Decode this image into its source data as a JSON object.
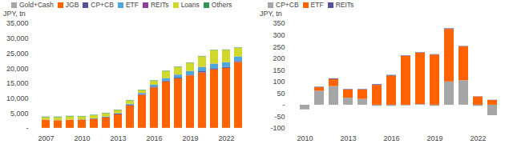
{
  "chart_data": [
    {
      "type": "bar",
      "stacked": true,
      "legend": "top",
      "ylabel": "JPY, tn",
      "categories": [
        "2007",
        null,
        null,
        "2010",
        null,
        null,
        "2013",
        null,
        null,
        "2016",
        null,
        null,
        "2019",
        null,
        null,
        "2022",
        null
      ],
      "series": [
        {
          "name": "Gold+Cash",
          "color": "#a6a6a6",
          "values": [
            60,
            60,
            60,
            60,
            60,
            60,
            60,
            60,
            60,
            60,
            60,
            60,
            60,
            60,
            60,
            60,
            60
          ]
        },
        {
          "name": "JGB",
          "color": "#ff6200",
          "values": [
            2700,
            2500,
            2600,
            2700,
            3000,
            3500,
            4500,
            7500,
            11000,
            13500,
            15500,
            16500,
            17500,
            18500,
            19500,
            20000,
            22000
          ]
        },
        {
          "name": "CP+CB",
          "color": "#525199",
          "values": [
            50,
            50,
            100,
            100,
            150,
            200,
            250,
            250,
            250,
            250,
            250,
            250,
            250,
            400,
            400,
            350,
            300
          ]
        },
        {
          "name": "ETF",
          "color": "#4ea6dc",
          "values": [
            0,
            0,
            0,
            10,
            40,
            80,
            150,
            250,
            400,
            600,
            800,
            1000,
            1200,
            1400,
            1500,
            1500,
            1500
          ]
        },
        {
          "name": "REITs",
          "color": "#8e3f9b",
          "values": [
            0,
            0,
            0,
            2,
            5,
            10,
            15,
            20,
            30,
            40,
            50,
            55,
            60,
            65,
            65,
            65,
            65
          ]
        },
        {
          "name": "Loans",
          "color": "#d0d92b",
          "values": [
            800,
            1000,
            1100,
            1000,
            1000,
            1100,
            1000,
            1100,
            900,
            1300,
            2300,
            2500,
            2600,
            3500,
            4400,
            4100,
            2800
          ]
        },
        {
          "name": "Others",
          "color": "#349651",
          "values": [
            200,
            200,
            200,
            150,
            150,
            150,
            150,
            150,
            150,
            150,
            150,
            150,
            150,
            150,
            150,
            150,
            150
          ]
        }
      ],
      "ylim": [
        0,
        35000
      ],
      "yticks": [
        {
          "value": 0,
          "label": "-"
        },
        {
          "value": 5000,
          "label": "5,000"
        },
        {
          "value": 10000,
          "label": "10,000"
        },
        {
          "value": 15000,
          "label": "15,000"
        },
        {
          "value": 20000,
          "label": "20,000"
        },
        {
          "value": 25000,
          "label": "25,000"
        },
        {
          "value": 30000,
          "label": "30,000"
        },
        {
          "value": 35000,
          "label": "35,000"
        }
      ]
    },
    {
      "type": "bar",
      "stacked": true,
      "legend": "top",
      "ylabel": "JPY, tn",
      "categories": [
        "2010",
        null,
        null,
        "2013",
        null,
        null,
        "2016",
        null,
        null,
        "2019",
        null,
        null,
        "2022",
        null
      ],
      "series": [
        {
          "name": "CP+CB",
          "color": "#a6a6a6",
          "values": [
            -20,
            60,
            80,
            30,
            25,
            -5,
            -5,
            -3,
            3,
            -5,
            100,
            105,
            -5,
            -45
          ]
        },
        {
          "name": "ETF",
          "color": "#ff6200",
          "values": [
            0,
            15,
            30,
            35,
            40,
            85,
            125,
            210,
            220,
            215,
            225,
            145,
            35,
            20
          ]
        },
        {
          "name": "REITs",
          "color": "#525199",
          "values": [
            0,
            2,
            3,
            2,
            2,
            3,
            3,
            2,
            2,
            2,
            3,
            2,
            1,
            1
          ]
        }
      ],
      "ylim": [
        -100,
        350
      ],
      "yticks": [
        -100,
        -50,
        {
          "value": 0,
          "label": "-"
        },
        50,
        100,
        150,
        200,
        250,
        300,
        350
      ]
    }
  ]
}
